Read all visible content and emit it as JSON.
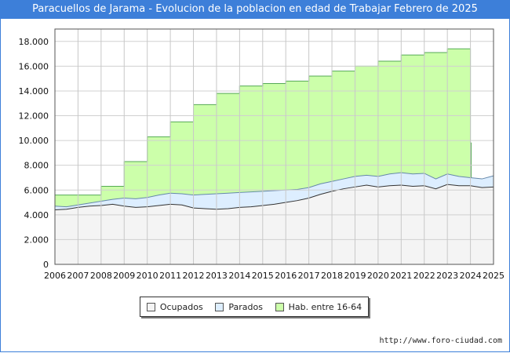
{
  "header": {
    "title": "Paracuellos de Jarama - Evolucion de la poblacion en edad de Trabajar Febrero de 2025"
  },
  "footer": {
    "url": "http://www.foro-ciudad.com"
  },
  "colors": {
    "header_bg": "#3d7fd9",
    "hab": "#ccffaa",
    "hab_line": "#55aa55",
    "parados": "#ddeeff",
    "parados_line": "#6688aa",
    "ocupados": "#f4f4f4",
    "ocupados_line": "#333333"
  },
  "chart_data": {
    "type": "area",
    "title": "Paracuellos de Jarama - Evolucion de la poblacion en edad de Trabajar Febrero de 2025",
    "xlabel": "",
    "ylabel": "",
    "xlim": [
      2006,
      2025
    ],
    "ylim": [
      0,
      19000
    ],
    "yticks": [
      0,
      2000,
      4000,
      6000,
      8000,
      10000,
      12000,
      14000,
      16000,
      18000
    ],
    "ytick_labels": [
      "0",
      "2.000",
      "4.000",
      "6.000",
      "8.000",
      "10.000",
      "12.000",
      "14.000",
      "16.000",
      "18.000"
    ],
    "xticks": [
      "2006",
      "2007",
      "2008",
      "2009",
      "2010",
      "2011",
      "2012",
      "2013",
      "2014",
      "2015",
      "2016",
      "2017",
      "2018",
      "2019",
      "2020",
      "2021",
      "2022",
      "2023",
      "2024",
      "2025"
    ],
    "grid": true,
    "legend": {
      "position": "bottom",
      "entries": [
        "Ocupados",
        "Parados",
        "Hab. entre 16-64"
      ]
    },
    "series": [
      {
        "name": "Hab. entre 16-64",
        "type": "step",
        "x": [
          2006,
          2008,
          2009,
          2010,
          2011,
          2012,
          2013,
          2014,
          2015,
          2016,
          2017,
          2018,
          2019,
          2020,
          2021,
          2022,
          2023,
          2024
        ],
        "values": [
          5600,
          6300,
          8300,
          10300,
          11500,
          12900,
          13800,
          14400,
          14600,
          14800,
          15200,
          15600,
          16000,
          16400,
          16900,
          17100,
          17400,
          9800
        ]
      },
      {
        "name": "Parados",
        "x": [
          2006,
          2006.5,
          2007,
          2007.5,
          2008,
          2008.5,
          2009,
          2009.5,
          2010,
          2010.5,
          2011,
          2011.5,
          2012,
          2012.5,
          2013,
          2013.5,
          2014,
          2014.5,
          2015,
          2015.5,
          2016,
          2016.5,
          2017,
          2017.5,
          2018,
          2018.5,
          2019,
          2019.5,
          2020,
          2020.5,
          2021,
          2021.5,
          2022,
          2022.5,
          2023,
          2023.5,
          2024,
          2024.5,
          2025
        ],
        "values": [
          4700,
          4650,
          4800,
          4950,
          5100,
          5250,
          5350,
          5300,
          5400,
          5600,
          5750,
          5700,
          5600,
          5650,
          5700,
          5750,
          5800,
          5850,
          5900,
          5950,
          6000,
          6050,
          6200,
          6500,
          6700,
          6900,
          7100,
          7200,
          7100,
          7300,
          7400,
          7300,
          7350,
          6900,
          7300,
          7100,
          7000,
          6900,
          7150
        ]
      },
      {
        "name": "Ocupados",
        "x": [
          2006,
          2006.5,
          2007,
          2007.5,
          2008,
          2008.5,
          2009,
          2009.5,
          2010,
          2010.5,
          2011,
          2011.5,
          2012,
          2012.5,
          2013,
          2013.5,
          2014,
          2014.5,
          2015,
          2015.5,
          2016,
          2016.5,
          2017,
          2017.5,
          2018,
          2018.5,
          2019,
          2019.5,
          2020,
          2020.5,
          2021,
          2021.5,
          2022,
          2022.5,
          2023,
          2023.5,
          2024,
          2024.5,
          2025
        ],
        "values": [
          4400,
          4450,
          4600,
          4700,
          4750,
          4850,
          4700,
          4600,
          4650,
          4750,
          4850,
          4800,
          4550,
          4500,
          4450,
          4500,
          4600,
          4650,
          4750,
          4850,
          5000,
          5150,
          5350,
          5650,
          5900,
          6100,
          6250,
          6400,
          6250,
          6350,
          6400,
          6300,
          6350,
          6100,
          6450,
          6350,
          6350,
          6200,
          6250
        ]
      }
    ]
  }
}
